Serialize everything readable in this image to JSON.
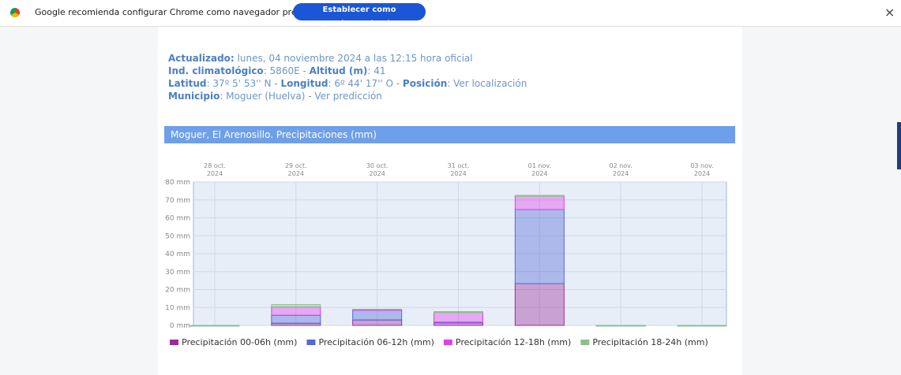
{
  "browser_bar": {
    "message": "Google recomienda configurar Chrome como navegador predeterminado",
    "button": "Establecer como predeterminado",
    "close": "×"
  },
  "header": {
    "lines": [
      [
        {
          "text": "Actualizado:",
          "bold": true
        },
        {
          "text": " lunes, 04 noviembre 2024 a las 12:15 hora oficial",
          "bold": false
        }
      ],
      [
        {
          "text": "Ind. climatológico",
          "bold": true
        },
        {
          "text": ": 5860E - ",
          "bold": false
        },
        {
          "text": "Altitud (m)",
          "bold": true
        },
        {
          "text": ": 41",
          "bold": false
        }
      ],
      [
        {
          "text": "Latitud",
          "bold": true
        },
        {
          "text": ": 37º 5' 53'' N",
          "bold": false
        },
        {
          "text": " - ",
          "bold": false
        },
        {
          "text": "Longitud",
          "bold": true
        },
        {
          "text": ": 6º 44' 17'' O",
          "bold": false
        },
        {
          "text": " - ",
          "bold": false
        },
        {
          "text": "Posición",
          "bold": true
        },
        {
          "text": ":  Ver localización",
          "bold": false
        }
      ],
      [
        {
          "text": "Municipio",
          "bold": true
        },
        {
          "text": ":  Moguer (Huelva) - Ver predicción",
          "bold": false
        }
      ]
    ]
  },
  "chart_data": {
    "type": "stacked_bar",
    "title": "Moguer, El Arenosillo. Precipitaciones (mm)",
    "categories": [
      "28 oct.\n2024",
      "29 oct.\n2024",
      "30 oct.\n2024",
      "31 oct.\n2024",
      "01 nov.\n2024",
      "02 nov.\n2024",
      "03 nov.\n2024"
    ],
    "series": [
      {
        "name": "Precipitación 00-06h (mm)",
        "color": "#9b2d9b",
        "values": [
          0,
          1.2,
          3.0,
          1.4,
          23.3,
          0,
          0
        ]
      },
      {
        "name": "Precipitación 06-12h (mm)",
        "color": "#5468d8",
        "values": [
          0,
          4.4,
          5.8,
          0.4,
          41.3,
          0,
          0
        ]
      },
      {
        "name": "Precipitación 12-18h (mm)",
        "color": "#e23ee8",
        "values": [
          0,
          4.6,
          0,
          5.8,
          7.9,
          0,
          0
        ]
      },
      {
        "name": "Precipitación 18-24h (mm)",
        "color": "#8cbf8c",
        "values": [
          0,
          1.4,
          0.2,
          0,
          0,
          0,
          0
        ]
      }
    ],
    "ylim": [
      0,
      80
    ],
    "yticks": [
      {
        "value": 0,
        "label": "0 mm"
      },
      {
        "value": 10,
        "label": "10 mm"
      },
      {
        "value": 20,
        "label": "20 mm"
      },
      {
        "value": 30,
        "label": "30 mm"
      },
      {
        "value": 40,
        "label": "40 mm"
      },
      {
        "value": 50,
        "label": "50 mm"
      },
      {
        "value": 60,
        "label": "60 mm"
      },
      {
        "value": 70,
        "label": "70 mm"
      },
      {
        "value": 80,
        "label": "80 mm"
      }
    ],
    "grid": true
  }
}
